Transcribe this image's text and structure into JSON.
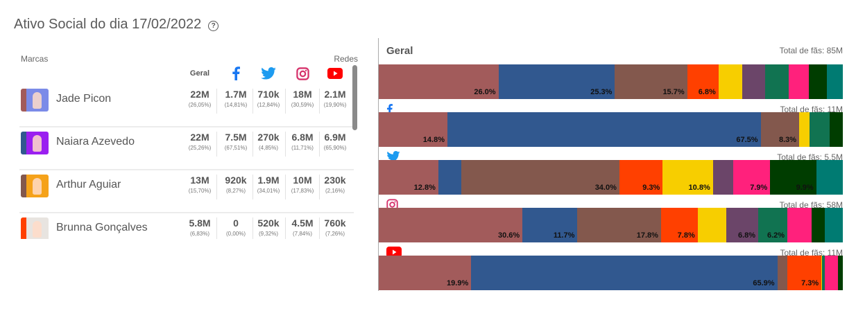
{
  "header": {
    "title": "Ativo Social do dia 17/02/2022",
    "help_icon": "help-circle-icon"
  },
  "table": {
    "brands_label": "Marcas",
    "networks_label": "Redes",
    "columns": [
      {
        "key": "geral",
        "label": "Geral"
      },
      {
        "key": "facebook",
        "icon": "facebook-icon",
        "color": "#1877f2"
      },
      {
        "key": "twitter",
        "icon": "twitter-icon",
        "color": "#1d9bf0"
      },
      {
        "key": "instagram",
        "icon": "instagram-icon",
        "color": "#e1306c"
      },
      {
        "key": "youtube",
        "icon": "youtube-icon",
        "color": "#ff0000"
      }
    ],
    "rows": [
      {
        "name": "Jade Picon",
        "color": "#a25b5b",
        "photo_bg": "#7b8be8",
        "values": [
          {
            "v": "22M",
            "p": "(26,05%)"
          },
          {
            "v": "1.7M",
            "p": "(14,81%)"
          },
          {
            "v": "710k",
            "p": "(12,84%)"
          },
          {
            "v": "18M",
            "p": "(30,59%)"
          },
          {
            "v": "2.1M",
            "p": "(19,90%)"
          }
        ]
      },
      {
        "name": "Naiara Azevedo",
        "color": "#31588f",
        "photo_bg": "#9a1ff0",
        "values": [
          {
            "v": "22M",
            "p": "(25,26%)"
          },
          {
            "v": "7.5M",
            "p": "(67,51%)"
          },
          {
            "v": "270k",
            "p": "(4,85%)"
          },
          {
            "v": "6.8M",
            "p": "(11,71%)"
          },
          {
            "v": "6.9M",
            "p": "(65,90%)"
          }
        ]
      },
      {
        "name": "Arthur Aguiar",
        "color": "#83584d",
        "photo_bg": "#f5a21a",
        "values": [
          {
            "v": "13M",
            "p": "(15,70%)"
          },
          {
            "v": "920k",
            "p": "(8,27%)"
          },
          {
            "v": "1.9M",
            "p": "(34,01%)"
          },
          {
            "v": "10M",
            "p": "(17,83%)"
          },
          {
            "v": "230k",
            "p": "(2,16%)"
          }
        ]
      },
      {
        "name": "Brunna Gonçalves",
        "color": "#ff4000",
        "photo_bg": "#e8e4e0",
        "values": [
          {
            "v": "5.8M",
            "p": "(6,83%)"
          },
          {
            "v": "0",
            "p": "(0,00%)"
          },
          {
            "v": "520k",
            "p": "(9,32%)"
          },
          {
            "v": "4.5M",
            "p": "(7,84%)"
          },
          {
            "v": "760k",
            "p": "(7,26%)"
          }
        ]
      }
    ]
  },
  "chart_data": {
    "type": "bar",
    "stacked": true,
    "orientation": "horizontal",
    "normalized": "100%",
    "colors": [
      "#a25b5b",
      "#31588f",
      "#83584d",
      "#ff4000",
      "#f7ce00",
      "#6b4569",
      "#117351",
      "#ff217c",
      "#003d00",
      "#007b72"
    ],
    "total_prefix": "Total de fãs:",
    "bars": [
      {
        "name": "Geral",
        "title": "Geral",
        "total": "85M",
        "values": [
          26.0,
          25.3,
          15.7,
          6.8,
          5.1,
          5.1,
          5.0,
          4.4,
          4.0,
          3.4
        ],
        "labels": [
          "26.0%",
          "25.3%",
          "15.7%",
          "6.8%",
          "",
          "",
          "",
          "",
          "",
          ""
        ]
      },
      {
        "name": "Facebook",
        "icon": "facebook-icon",
        "total": "11M",
        "values": [
          14.8,
          67.5,
          8.3,
          0,
          2.3,
          0,
          4.2,
          0,
          2.9,
          0
        ],
        "labels": [
          "14.8%",
          "67.5%",
          "8.3%",
          "",
          "",
          "",
          "",
          "",
          "",
          ""
        ]
      },
      {
        "name": "Twitter",
        "icon": "twitter-icon",
        "total": "5.5M",
        "values": [
          12.8,
          4.9,
          34.0,
          9.3,
          10.8,
          4.4,
          0,
          7.9,
          9.9,
          5.7
        ],
        "labels": [
          "12.8%",
          "",
          "34.0%",
          "9.3%",
          "10.8%",
          "",
          "",
          "7.9%",
          "9.9%",
          ""
        ]
      },
      {
        "name": "Instagram",
        "icon": "instagram-icon",
        "total": "58M",
        "values": [
          30.6,
          11.7,
          17.8,
          7.8,
          6.1,
          6.8,
          6.2,
          5.2,
          2.8,
          3.8
        ],
        "labels": [
          "30.6%",
          "11.7%",
          "17.8%",
          "7.8%",
          "",
          "6.8%",
          "6.2%",
          "",
          "",
          ""
        ]
      },
      {
        "name": "YouTube",
        "icon": "youtube-icon",
        "total": "11M",
        "values": [
          19.9,
          65.9,
          2.2,
          7.3,
          0.2,
          0,
          0.6,
          2.8,
          1.0,
          0
        ],
        "labels": [
          "19.9%",
          "65.9%",
          "",
          "7.3%",
          "",
          "",
          "",
          "",
          "",
          ""
        ]
      }
    ]
  }
}
